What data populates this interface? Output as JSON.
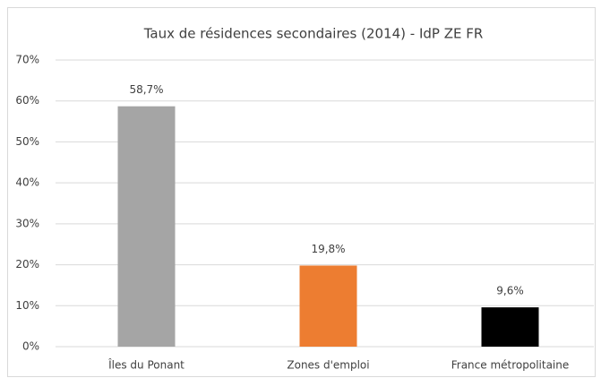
{
  "chart_data": {
    "type": "bar",
    "title": "Taux de résidences secondaires (2014) - IdP ZE FR",
    "categories": [
      "Îles du Ponant",
      "Zones d'emploi",
      "France métropolitaine"
    ],
    "values": [
      58.7,
      19.8,
      9.6
    ],
    "value_labels": [
      "58,7%",
      "19,8%",
      "9,6%"
    ],
    "colors": [
      "#a5a5a5",
      "#ed7d31",
      "#000000"
    ],
    "ylim": [
      0,
      70
    ],
    "yticks": [
      {
        "value": 0,
        "label": "0%"
      },
      {
        "value": 10,
        "label": "10%"
      },
      {
        "value": 20,
        "label": "20%"
      },
      {
        "value": 30,
        "label": "30%"
      },
      {
        "value": 40,
        "label": "40%"
      },
      {
        "value": 50,
        "label": "50%"
      },
      {
        "value": 60,
        "label": "60%"
      },
      {
        "value": 70,
        "label": "70%"
      }
    ],
    "grid": true
  }
}
